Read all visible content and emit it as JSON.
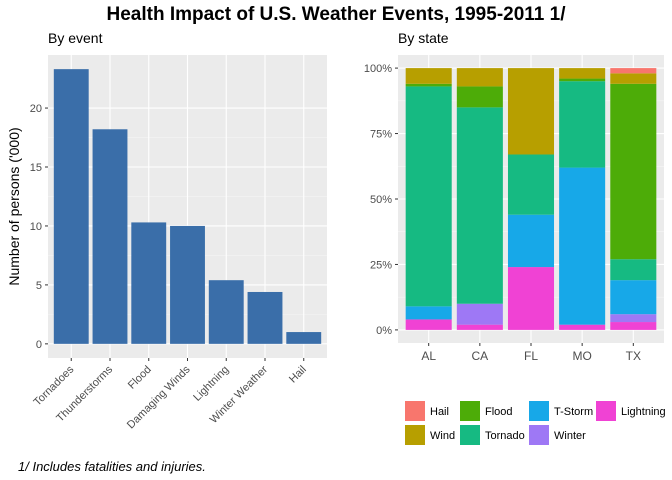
{
  "title": "Health Impact of U.S. Weather Events, 1995-2011 1/",
  "footnote": "1/ Includes fatalities and injuries.",
  "chart_data": [
    {
      "type": "bar",
      "subtitle": "By event",
      "ylabel": "Number of persons ('000)",
      "categories": [
        "Tornadoes",
        "Thunderstorms",
        "Flood",
        "Damaging Winds",
        "Lightning",
        "Winter Weather",
        "Hail"
      ],
      "values": [
        23.3,
        18.2,
        10.3,
        10.0,
        5.4,
        4.4,
        1.0
      ],
      "ylim": [
        -1.2,
        24.5
      ],
      "yticks": [
        0,
        5,
        10,
        15,
        20
      ],
      "ytick_labels": [
        "0",
        "5",
        "10",
        "15",
        "20"
      ],
      "bar_color": "#3A6EA9",
      "grid": true
    },
    {
      "type": "bar",
      "stacked": true,
      "subtitle": "By state",
      "categories": [
        "AL",
        "CA",
        "FL",
        "MO",
        "TX"
      ],
      "ylim": [
        -0.05,
        1.05
      ],
      "yticks": [
        0,
        0.25,
        0.5,
        0.75,
        1.0
      ],
      "ytick_labels": [
        "0%",
        "25%",
        "50%",
        "75%",
        "100%"
      ],
      "legend_position": "bottom",
      "grid": true,
      "stack_order": [
        "Lightning",
        "Winter",
        "T-Storm",
        "Tornado",
        "Flood",
        "Wind",
        "Hail"
      ],
      "series": [
        {
          "name": "Hail",
          "color": "#F8766D",
          "values": [
            0.0,
            0.0,
            0.0,
            0.0,
            0.02
          ]
        },
        {
          "name": "Wind",
          "color": "#B79F00",
          "values": [
            0.06,
            0.07,
            0.33,
            0.04,
            0.04
          ]
        },
        {
          "name": "Flood",
          "color": "#4DAC08",
          "values": [
            0.01,
            0.08,
            0.0,
            0.01,
            0.67
          ]
        },
        {
          "name": "Tornado",
          "color": "#16BA82",
          "values": [
            0.84,
            0.75,
            0.23,
            0.33,
            0.08
          ]
        },
        {
          "name": "T-Storm",
          "color": "#17A8E8",
          "values": [
            0.05,
            0.0,
            0.2,
            0.6,
            0.13
          ]
        },
        {
          "name": "Winter",
          "color": "#9E78F5",
          "values": [
            0.0,
            0.08,
            0.0,
            0.0,
            0.03
          ]
        },
        {
          "name": "Lightning",
          "color": "#F042D4",
          "values": [
            0.04,
            0.02,
            0.24,
            0.02,
            0.03
          ]
        }
      ],
      "legend_rows": [
        [
          "Hail",
          "Flood",
          "T-Storm",
          "Lightning"
        ],
        [
          "Wind",
          "Tornado",
          "Winter"
        ]
      ]
    }
  ]
}
